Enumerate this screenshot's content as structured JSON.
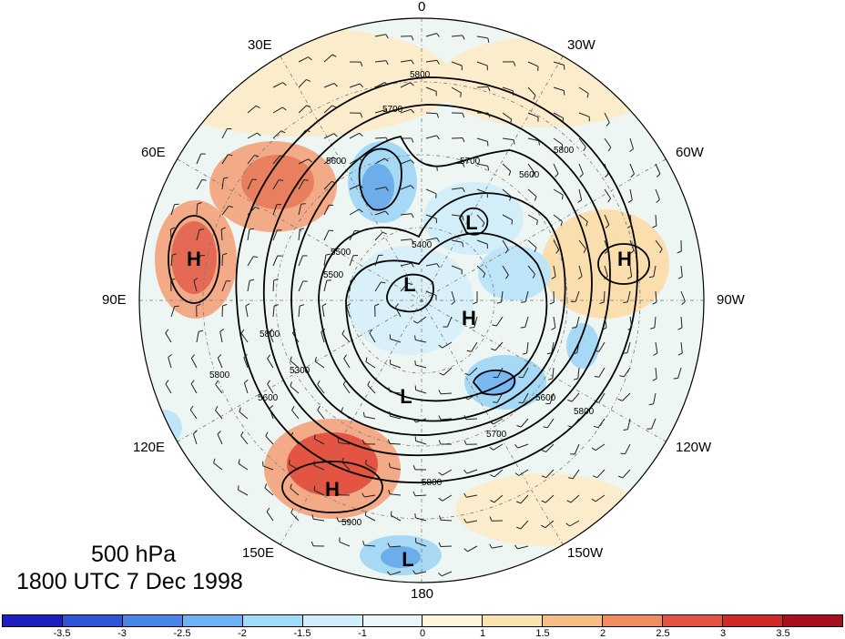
{
  "map": {
    "level_title": "500 hPa",
    "time_title": "1800 UTC 7 Dec 1998",
    "longitude_labels": [
      "0",
      "30W",
      "60W",
      "90W",
      "120W",
      "150W",
      "180",
      "150E",
      "120E",
      "90E",
      "60E",
      "30E"
    ],
    "pressure_systems": [
      "H",
      "H",
      "H",
      "H",
      "L",
      "L",
      "L",
      "L"
    ],
    "contour_labels": [
      "5800",
      "5700",
      "5600",
      "5500",
      "5400",
      "5600",
      "5800",
      "5700",
      "5600",
      "5800",
      "5700",
      "5900",
      "5800",
      "5500",
      "5800",
      "5300",
      "5600",
      "5800"
    ],
    "colorbar": {
      "colors": [
        "#1f1fbf",
        "#2f55d6",
        "#4b85e8",
        "#6db2f2",
        "#9fdcf8",
        "#cfeef9",
        "#eaf6fa",
        "#fdf6dc",
        "#fbe3b0",
        "#f7bd86",
        "#f08b62",
        "#e45445",
        "#cf2a2a",
        "#a70f1f"
      ],
      "ticks": [
        "-3.5",
        "-3",
        "-2.5",
        "-2",
        "-1.5",
        "-1",
        "0",
        "1",
        "1.5",
        "2",
        "2.5",
        "3",
        "3.5"
      ]
    }
  }
}
